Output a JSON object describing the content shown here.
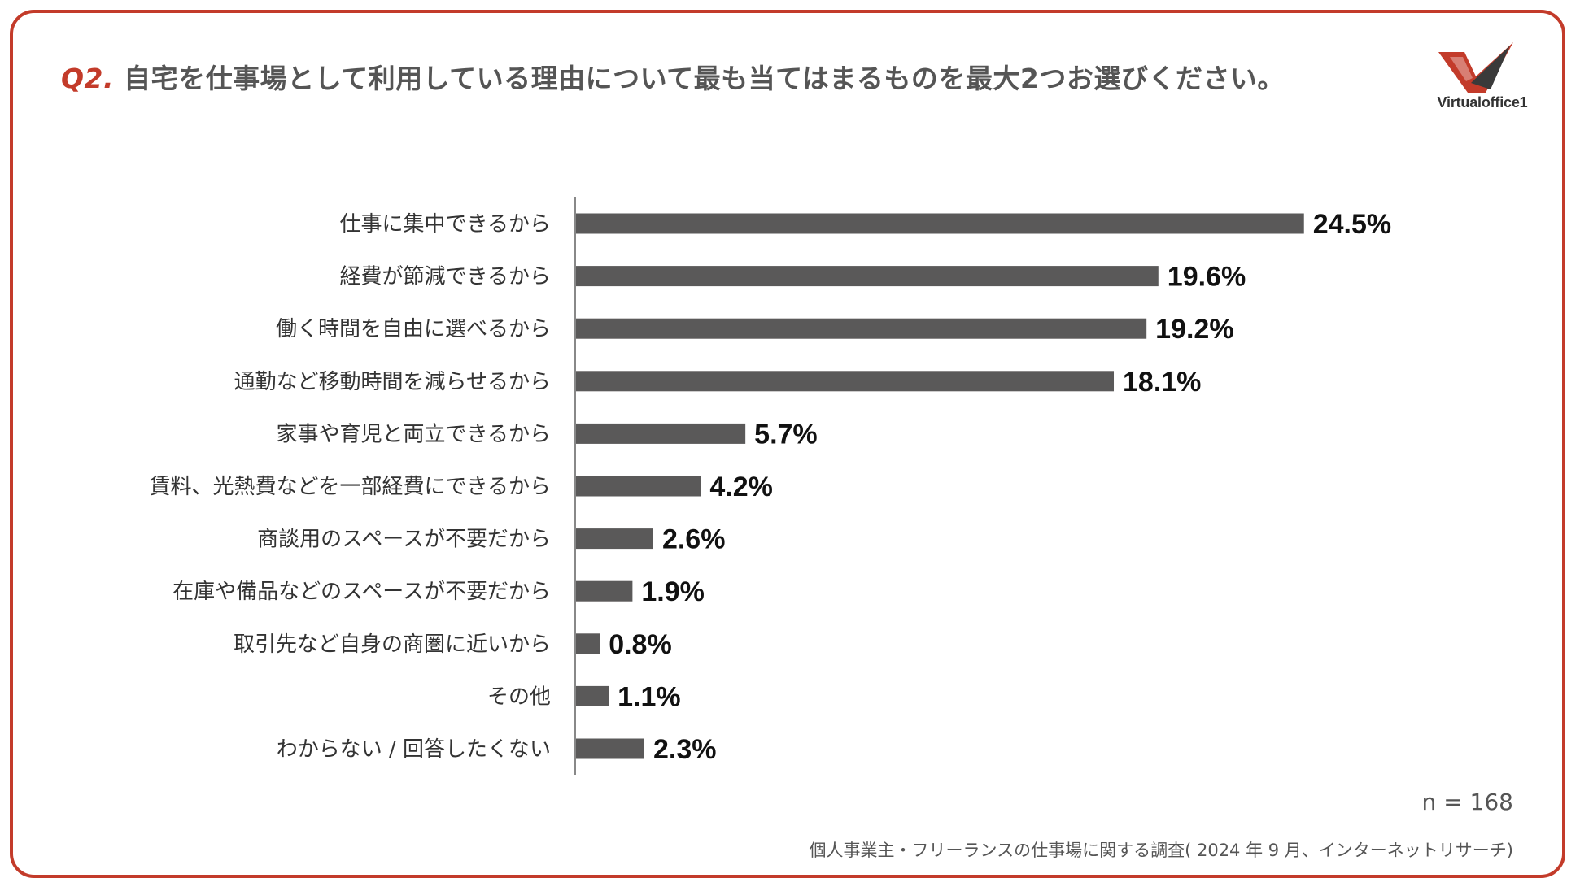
{
  "title": {
    "qnum": "Q2.",
    "text": "自宅を仕事場として利用している理由について最も当てはまるものを最大2つお選びください。"
  },
  "logo": {
    "text": "Virtualoffice1"
  },
  "colors": {
    "accent": "#c33b2a",
    "bar": "#5a5959",
    "text": "#333333"
  },
  "chart_data": {
    "type": "bar",
    "orientation": "horizontal",
    "categories": [
      "仕事に集中できるから",
      "経費が節減できるから",
      "働く時間を自由に選べるから",
      "通勤など移動時間を減らせるから",
      "家事や育児と両立できるから",
      "賃料、光熱費などを一部経費にできるから",
      "商談用のスペースが不要だから",
      "在庫や備品などのスペースが不要だから",
      "取引先など自身の商圏に近いから",
      "その他",
      "わからない / 回答したくない"
    ],
    "values": [
      24.5,
      19.6,
      19.2,
      18.1,
      5.7,
      4.2,
      2.6,
      1.9,
      0.8,
      1.1,
      2.3
    ],
    "value_labels": [
      "24.5%",
      "19.6%",
      "19.2%",
      "18.1%",
      "5.7%",
      "4.2%",
      "2.6%",
      "1.9%",
      "0.8%",
      "1.1%",
      "2.3%"
    ],
    "xlim": [
      0,
      25
    ],
    "grid": false,
    "legend": "none"
  },
  "footer": {
    "n": "n = 168",
    "source": "個人事業主・フリーランスの仕事場に関する調査( 2024 年 9 月、インターネットリサーチ)"
  }
}
